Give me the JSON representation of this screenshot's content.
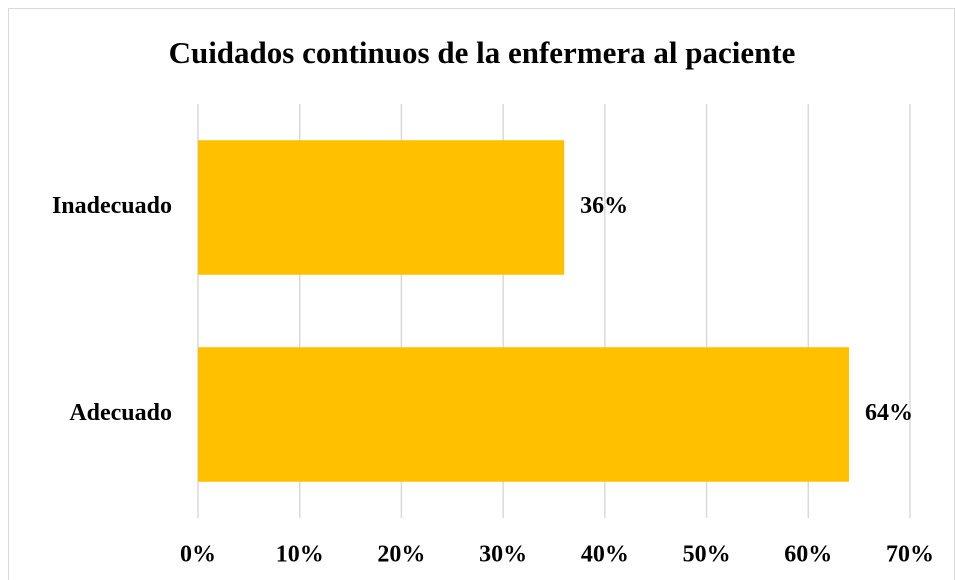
{
  "chart_data": {
    "type": "bar",
    "orientation": "horizontal",
    "title": "Cuidados continuos de la enfermera al paciente",
    "categories": [
      "Inadecuado",
      "Adecuado"
    ],
    "values": [
      36,
      64
    ],
    "value_labels": [
      "36%",
      "64%"
    ],
    "color": "#ffc000",
    "xlim": [
      0,
      70
    ],
    "xticks": [
      {
        "value": 0,
        "label": "0%"
      },
      {
        "value": 10,
        "label": "10%"
      },
      {
        "value": 20,
        "label": "20%"
      },
      {
        "value": 30,
        "label": "30%"
      },
      {
        "value": 40,
        "label": "40%"
      },
      {
        "value": 50,
        "label": "50%"
      },
      {
        "value": 60,
        "label": "60%"
      },
      {
        "value": 70,
        "label": "70%"
      }
    ],
    "grid": true
  }
}
